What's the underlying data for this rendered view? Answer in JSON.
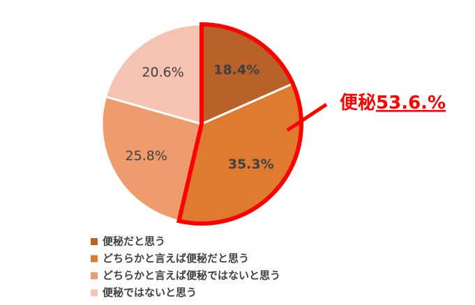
{
  "chart_data": {
    "type": "pie",
    "categories": [
      "便秘だと思う",
      "どちらかと言えば便秘だと思う",
      "どちらかと言えば便秘ではないと思う",
      "便秘ではないと思う"
    ],
    "values": [
      18.4,
      35.3,
      25.8,
      20.6
    ],
    "value_labels": [
      "18.4%",
      "35.3%",
      "25.8%",
      "20.6%"
    ],
    "colors": [
      "#b8622a",
      "#df7a31",
      "#ee9b6e",
      "#f5c3b1"
    ],
    "annotation": {
      "prefix": "便秘",
      "value": "53.6.%"
    }
  }
}
